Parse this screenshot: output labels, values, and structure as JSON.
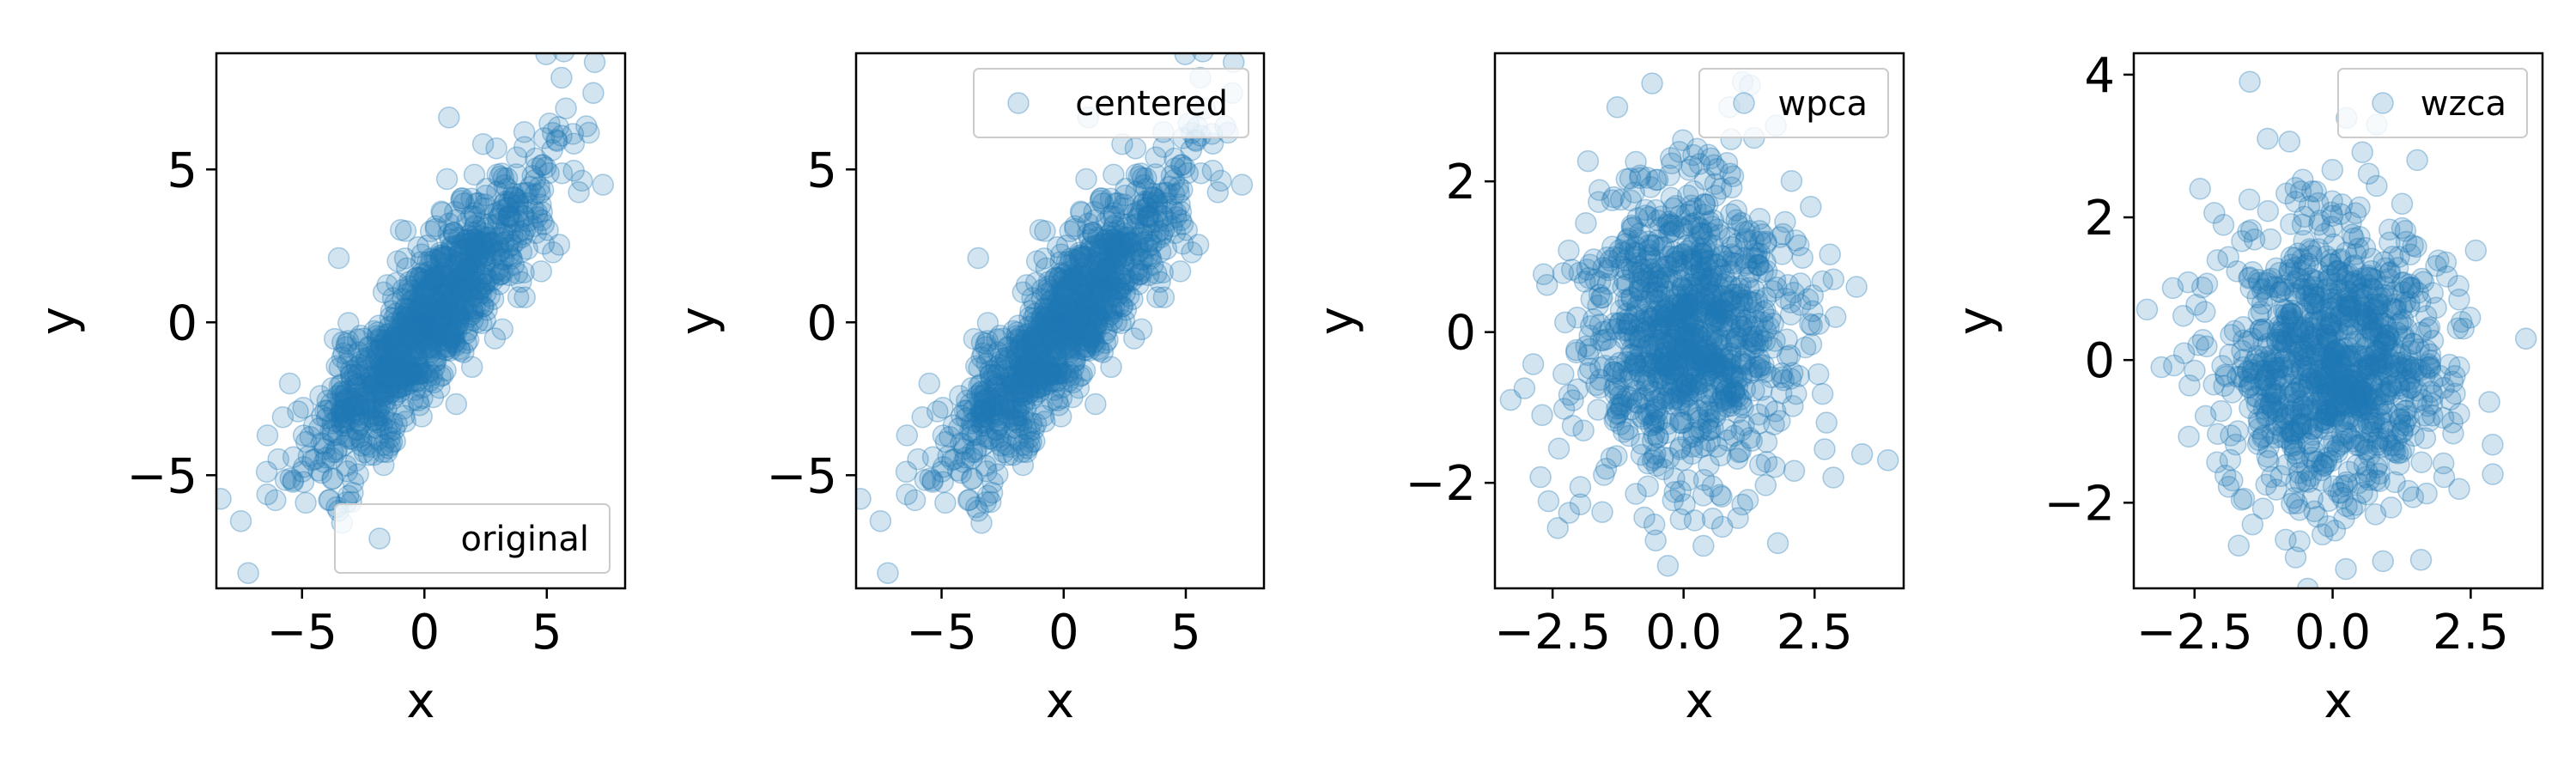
{
  "chart_data": [
    {
      "type": "scatter",
      "legend": "original",
      "legend_loc": "lower-right",
      "xlabel": "x",
      "ylabel": "y",
      "xlim": [
        -8.5,
        8.2
      ],
      "ylim": [
        -8.7,
        8.8
      ],
      "xticks": [
        -5,
        0,
        5
      ],
      "yticks": [
        -5,
        0,
        5
      ],
      "distribution": {
        "kind": "correlated",
        "sx": 2.4,
        "sy": 2.5,
        "rho": 0.87,
        "n": 1000,
        "seed": 11
      },
      "x": [
        -7.5,
        -7.2,
        6.9,
        7.3,
        5.6,
        1.0,
        -5.5,
        -3.5
      ],
      "y": [
        -6.5,
        -8.2,
        7.5,
        4.5,
        8.0,
        6.7,
        -2.0,
        2.1
      ]
    },
    {
      "type": "scatter",
      "legend": "centered",
      "legend_loc": "top-right",
      "xlabel": "x",
      "ylabel": "y",
      "xlim": [
        -8.5,
        8.2
      ],
      "ylim": [
        -8.7,
        8.8
      ],
      "xticks": [
        -5,
        0,
        5
      ],
      "yticks": [
        -5,
        0,
        5
      ],
      "distribution": {
        "kind": "correlated",
        "sx": 2.4,
        "sy": 2.5,
        "rho": 0.87,
        "n": 1000,
        "seed": 11
      },
      "x": [
        -7.5,
        -7.2,
        6.9,
        7.3,
        5.6,
        1.0,
        -5.5,
        -3.5
      ],
      "y": [
        -6.5,
        -8.2,
        7.5,
        4.5,
        8.0,
        6.7,
        -2.0,
        2.1
      ]
    },
    {
      "type": "scatter",
      "legend": "wpca",
      "legend_loc": "top-right",
      "xlabel": "x",
      "ylabel": "y",
      "xlim": [
        -3.6,
        4.2
      ],
      "ylim": [
        -3.4,
        3.7
      ],
      "xticks": [
        -2.5,
        0.0,
        2.5
      ],
      "yticks": [
        -2,
        0,
        2
      ],
      "distribution": {
        "kind": "correlated",
        "sx": 1.0,
        "sy": 1.0,
        "rho": 0.0,
        "n": 1000,
        "seed": 23
      },
      "x": [
        -3.3,
        3.9,
        -0.6,
        -2.4,
        1.8,
        -0.3,
        3.3,
        2.9
      ],
      "y": [
        -0.9,
        -1.7,
        3.3,
        -2.6,
        -2.8,
        -3.1,
        0.6,
        0.2
      ]
    },
    {
      "type": "scatter",
      "legend": "wzca",
      "legend_loc": "top-right",
      "xlabel": "x",
      "ylabel": "y",
      "xlim": [
        -3.6,
        3.8
      ],
      "ylim": [
        -3.2,
        4.3
      ],
      "xticks": [
        -2.5,
        0.0,
        2.5
      ],
      "yticks": [
        -2,
        0,
        2,
        4
      ],
      "distribution": {
        "kind": "correlated",
        "sx": 1.0,
        "sy": 1.0,
        "rho": 0.0,
        "n": 1000,
        "seed": 37
      },
      "x": [
        -1.5,
        3.5,
        -3.1,
        1.6,
        -1.7,
        0.8,
        2.9,
        -2.4
      ],
      "y": [
        3.9,
        0.3,
        -0.1,
        -2.8,
        -2.6,
        3.3,
        -1.6,
        2.4
      ]
    }
  ],
  "style": {
    "marker_color": "#1f77b4",
    "marker_alpha": 0.2,
    "axis_color": "#000000"
  }
}
